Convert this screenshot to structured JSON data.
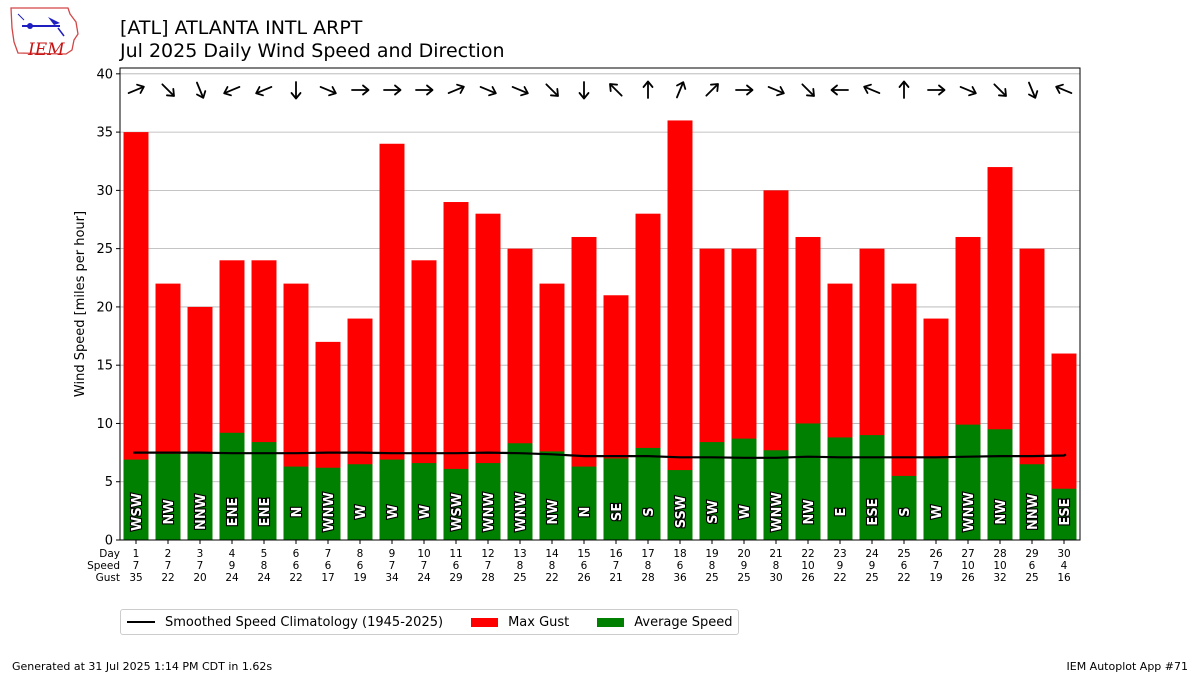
{
  "header": {
    "logo_text": "IEM",
    "title_line1": "[ATL] ATLANTA INTL ARPT",
    "title_line2": "Jul 2025 Daily Wind Speed and Direction"
  },
  "footer": {
    "generated": "Generated at 31 Jul 2025 1:14 PM CDT in 1.62s",
    "app": "IEM Autoplot App #71"
  },
  "colors": {
    "gust": "#ff0000",
    "average": "#008000",
    "climatology": "#000000"
  },
  "chart_data": {
    "type": "bar",
    "ylabel": "Wind Speed [miles per hour]",
    "ylim": [
      0,
      40.5
    ],
    "yticks": [
      0,
      5,
      10,
      15,
      20,
      25,
      30,
      35,
      40
    ],
    "grid": "horizontal",
    "legend_placement": "below",
    "row_labels": [
      "Day",
      "Speed",
      "Gust"
    ],
    "days": [
      1,
      2,
      3,
      4,
      5,
      6,
      7,
      8,
      9,
      10,
      11,
      12,
      13,
      14,
      15,
      16,
      17,
      18,
      19,
      20,
      21,
      22,
      23,
      24,
      25,
      26,
      27,
      28,
      29,
      30
    ],
    "speed_labels": [
      7,
      7,
      7,
      9,
      8,
      6,
      6,
      6,
      7,
      7,
      6,
      7,
      8,
      8,
      6,
      7,
      8,
      6,
      8,
      9,
      8,
      10,
      9,
      9,
      6,
      7,
      10,
      10,
      6,
      4
    ],
    "gust_labels": [
      35,
      22,
      20,
      24,
      24,
      22,
      17,
      19,
      34,
      24,
      29,
      28,
      25,
      22,
      26,
      21,
      28,
      36,
      25,
      25,
      30,
      26,
      22,
      25,
      22,
      19,
      26,
      32,
      25,
      16
    ],
    "directions": [
      "WSW",
      "NW",
      "NNW",
      "ENE",
      "ENE",
      "N",
      "WNW",
      "W",
      "W",
      "W",
      "WSW",
      "WNW",
      "WNW",
      "NW",
      "N",
      "SE",
      "S",
      "SSW",
      "SW",
      "W",
      "WNW",
      "NW",
      "E",
      "ESE",
      "S",
      "W",
      "WNW",
      "NW",
      "NNW",
      "ESE"
    ],
    "arrow_directions_deg": [
      247.5,
      315,
      337.5,
      67.5,
      67.5,
      0,
      292.5,
      270,
      270,
      270,
      247.5,
      292.5,
      292.5,
      315,
      0,
      135,
      180,
      202.5,
      225,
      270,
      292.5,
      315,
      90,
      112.5,
      180,
      270,
      292.5,
      315,
      337.5,
      112.5
    ],
    "series": [
      {
        "name": "Max Gust",
        "values": [
          35,
          22,
          20,
          24,
          24,
          22,
          17,
          19,
          34,
          24,
          29,
          28,
          25,
          22,
          26,
          21,
          28,
          36,
          25,
          25,
          30,
          26,
          22,
          25,
          22,
          19,
          26,
          32,
          25,
          16
        ]
      },
      {
        "name": "Average Speed",
        "values": [
          6.9,
          7.4,
          7.5,
          9.2,
          8.4,
          6.3,
          6.2,
          6.5,
          6.9,
          6.6,
          6.1,
          6.6,
          8.3,
          7.6,
          6.3,
          7.0,
          7.9,
          6.0,
          8.4,
          8.7,
          7.7,
          10.0,
          8.8,
          9.0,
          5.5,
          7.0,
          9.9,
          9.5,
          6.5,
          4.4
        ]
      },
      {
        "name": "Smoothed Speed Climatology (1945-2025)",
        "values": [
          7.5,
          7.5,
          7.5,
          7.45,
          7.45,
          7.45,
          7.5,
          7.5,
          7.45,
          7.45,
          7.45,
          7.5,
          7.45,
          7.35,
          7.2,
          7.2,
          7.2,
          7.1,
          7.1,
          7.05,
          7.05,
          7.15,
          7.1,
          7.1,
          7.1,
          7.1,
          7.15,
          7.2,
          7.2,
          7.25
        ],
        "end_value": 7.35
      }
    ]
  }
}
